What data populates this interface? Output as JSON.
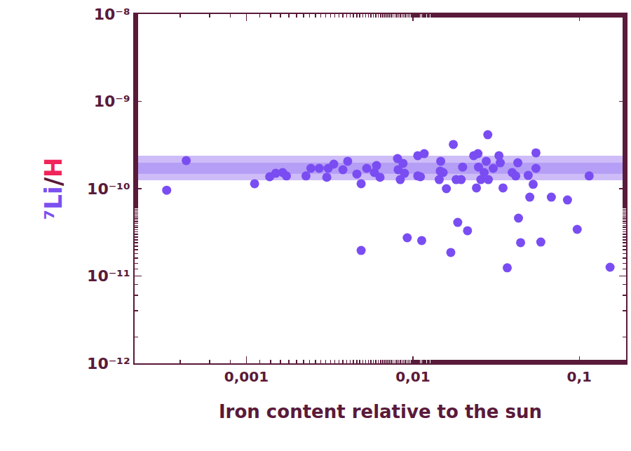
{
  "chart_data": {
    "type": "scatter",
    "xlabel": "Iron content relative to the sun",
    "ylabel": [
      {
        "text": "⁷Li",
        "color": "#7b4ff0"
      },
      {
        "text": "/",
        "color": "#5a1a3a"
      },
      {
        "text": "H",
        "color": "#f0245a"
      }
    ],
    "log": true,
    "grid": false,
    "color": "#7a4df2",
    "marker": "circle",
    "xlim": [
      0.000213,
      0.191
    ],
    "ylim": [
      1e-12,
      1e-08
    ],
    "xticks": [
      {
        "value": 0.001,
        "label": "0,001"
      },
      {
        "value": 0.01,
        "label": "0,01"
      },
      {
        "value": 0.1,
        "label": "0,1"
      }
    ],
    "yticks": [
      {
        "value": 1e-12,
        "label": "10⁻¹²"
      },
      {
        "value": 1e-11,
        "label": "10⁻¹¹"
      },
      {
        "value": 1e-10,
        "label": "10⁻¹⁰"
      },
      {
        "value": 1e-09,
        "label": "10⁻⁹"
      },
      {
        "value": 1e-08,
        "label": "10⁻⁸"
      }
    ],
    "bands": [
      {
        "lo": 1.25e-10,
        "hi": 2.39e-10,
        "color": "#cdbcf8"
      },
      {
        "lo": 1.48e-10,
        "hi": 1.98e-10,
        "color": "#b59ef5"
      }
    ],
    "x": [
      0.000332,
      0.000435,
      0.00112,
      0.00138,
      0.0015,
      0.00165,
      0.00174,
      0.00228,
      0.00244,
      0.00274,
      0.00304,
      0.0031,
      0.00335,
      0.0038,
      0.00406,
      0.00461,
      0.00489,
      0.00489,
      0.00528,
      0.00587,
      0.00605,
      0.00635,
      0.00809,
      0.00816,
      0.0084,
      0.00873,
      0.00891,
      0.00925,
      0.0107,
      0.0107,
      0.0111,
      0.0113,
      0.0117,
      0.0144,
      0.0146,
      0.0147,
      0.0152,
      0.0159,
      0.0169,
      0.0175,
      0.0182,
      0.0186,
      0.0195,
      0.0199,
      0.0213,
      0.0232,
      0.0241,
      0.0246,
      0.0248,
      0.0256,
      0.0268,
      0.0276,
      0.0282,
      0.0284,
      0.0304,
      0.0329,
      0.0335,
      0.0348,
      0.0369,
      0.0395,
      0.0415,
      0.0427,
      0.0431,
      0.0444,
      0.0493,
      0.0504,
      0.0528,
      0.0549,
      0.0549,
      0.0587,
      0.0679,
      0.0849,
      0.0971,
      0.1146,
      0.153
    ],
    "values": [
      9.6e-11,
      2.1e-10,
      1.14e-10,
      1.37e-10,
      1.5e-10,
      1.53e-10,
      1.4e-10,
      1.4e-10,
      1.71e-10,
      1.71e-10,
      1.35e-10,
      1.71e-10,
      1.91e-10,
      1.65e-10,
      2.06e-10,
      1.47e-10,
      1.14e-10,
      1.96e-11,
      1.71e-10,
      1.53e-10,
      1.84e-10,
      1.35e-10,
      2.21e-10,
      1.65e-10,
      1.27e-10,
      1.95e-10,
      1.5e-10,
      2.74e-11,
      1.4e-10,
      2.39e-10,
      1.37e-10,
      2.55e-11,
      2.52e-10,
      1.27e-10,
      1.59e-10,
      2.06e-10,
      1.53e-10,
      1e-10,
      1.86e-11,
      3.21e-10,
      1.27e-10,
      4.11e-11,
      1.27e-10,
      1.77e-10,
      3.3e-11,
      2.39e-10,
      1.02e-10,
      2.52e-10,
      1.77e-10,
      1.27e-10,
      1.53e-10,
      2.06e-10,
      4.15e-10,
      1.27e-10,
      1.71e-10,
      2.39e-10,
      1.98e-10,
      1.02e-10,
      1.24e-11,
      1.53e-10,
      1.4e-10,
      1.98e-10,
      4.6e-11,
      2.41e-11,
      1.42e-10,
      8e-11,
      1.12e-10,
      2.57e-10,
      1.71e-10,
      2.45e-11,
      8e-11,
      7.43e-11,
      3.42e-11,
      1.4e-10,
      1.26e-11
    ]
  }
}
